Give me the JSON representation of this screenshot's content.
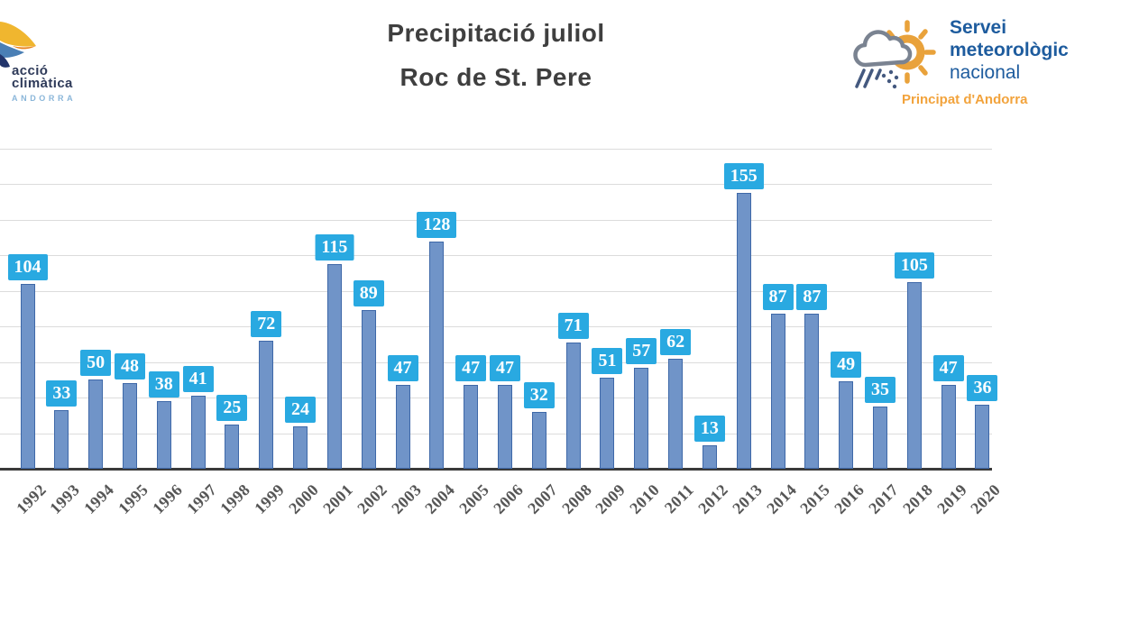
{
  "header": {
    "title_line1": "Precipitació juliol",
    "title_line2": "Roc de St. Pere"
  },
  "logo_left": {
    "line1": "acció",
    "line2": "climàtica",
    "line3": "ANDORRA"
  },
  "logo_right": {
    "line1": "Servei",
    "line2": "meteorològic",
    "line3": "nacional",
    "subtitle": "Principat d'Andorra"
  },
  "chart_data": {
    "type": "bar",
    "title": "Precipitació juliol Roc de St. Pere",
    "categories": [
      "1992",
      "1993",
      "1994",
      "1995",
      "1996",
      "1997",
      "1998",
      "1999",
      "2000",
      "2001",
      "2002",
      "2003",
      "2004",
      "2005",
      "2006",
      "2007",
      "2008",
      "2009",
      "2010",
      "2011",
      "2012",
      "2013",
      "2014",
      "2015",
      "2016",
      "2017",
      "2018",
      "2019",
      "2020"
    ],
    "values": [
      104,
      33,
      50,
      48,
      38,
      41,
      25,
      72,
      24,
      115,
      89,
      47,
      128,
      47,
      47,
      32,
      71,
      51,
      57,
      62,
      13,
      155,
      87,
      87,
      49,
      35,
      105,
      47,
      36
    ],
    "xlabel": "",
    "ylabel": "",
    "ylim": [
      0,
      180
    ],
    "gridline_step": 20,
    "grid": true,
    "legend": false,
    "data_labels": true,
    "y_axis_labels_visible": false
  },
  "colors": {
    "bar_fill": "#7094C8",
    "bar_border": "#3E68A8",
    "label_bg": "#29A9E1",
    "label_text": "#FFFFFF",
    "grid": "#DCDCDC",
    "axis": "#3A3A3A",
    "title": "#3F3F3F",
    "tick_text": "#565656",
    "logo_navy": "#2E3A59",
    "logo_lightblue": "#8AB6D9",
    "logo_blue_text": "#1E5C9E",
    "logo_orange": "#F2A33C",
    "sun": "#E9A23B",
    "cloud": "#7A8391",
    "rain": "#44597F"
  }
}
